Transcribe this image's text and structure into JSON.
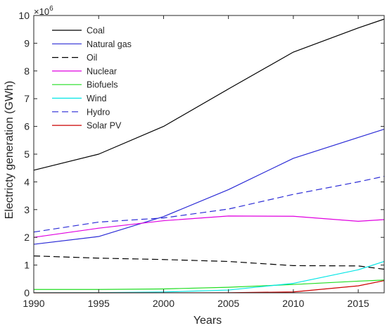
{
  "chart_data": {
    "type": "line",
    "title": "",
    "xlabel": "Years",
    "ylabel": "Electricty generation (GWh)",
    "y_exponent_label": "×10",
    "y_exponent_power": "6",
    "xlim": [
      1990,
      2017
    ],
    "ylim": [
      0,
      10
    ],
    "x_ticks": [
      1990,
      1995,
      2000,
      2005,
      2010,
      2015
    ],
    "x_tick_labels": [
      "1990",
      "1995",
      "2000",
      "2005",
      "2010",
      "2015"
    ],
    "y_ticks": [
      0,
      1,
      2,
      3,
      4,
      5,
      6,
      7,
      8,
      9,
      10
    ],
    "y_tick_labels": [
      "0",
      "1",
      "2",
      "3",
      "4",
      "5",
      "6",
      "7",
      "8",
      "9",
      "10"
    ],
    "grid": false,
    "legend_position": "top-left",
    "x": [
      1990,
      1995,
      2000,
      2005,
      2010,
      2015,
      2017
    ],
    "series": [
      {
        "name": "Coal",
        "color": "#000000",
        "dash": "solid",
        "values": [
          4.42,
          5.0,
          6.0,
          7.35,
          8.68,
          9.55,
          9.87
        ]
      },
      {
        "name": "Natural gas",
        "color": "#2b2bd6",
        "dash": "solid",
        "values": [
          1.75,
          2.03,
          2.75,
          3.72,
          4.85,
          5.6,
          5.9
        ]
      },
      {
        "name": "Oil",
        "color": "#000000",
        "dash": "dashed",
        "values": [
          1.33,
          1.25,
          1.2,
          1.13,
          0.98,
          0.97,
          0.85
        ]
      },
      {
        "name": "Nuclear",
        "color": "#e000e0",
        "dash": "solid",
        "values": [
          2.0,
          2.33,
          2.6,
          2.77,
          2.76,
          2.58,
          2.64
        ]
      },
      {
        "name": "Biofuels",
        "color": "#22dd22",
        "dash": "solid",
        "values": [
          0.12,
          0.12,
          0.14,
          0.2,
          0.3,
          0.42,
          0.46
        ]
      },
      {
        "name": "Wind",
        "color": "#00e5e5",
        "dash": "solid",
        "values": [
          0.004,
          0.006,
          0.03,
          0.1,
          0.34,
          0.83,
          1.13
        ]
      },
      {
        "name": "Hydro",
        "color": "#2b2bd6",
        "dash": "dashed",
        "values": [
          2.19,
          2.55,
          2.7,
          3.02,
          3.55,
          4.0,
          4.2
        ]
      },
      {
        "name": "Solar PV",
        "color": "#cc0000",
        "dash": "solid",
        "values": [
          0.0,
          0.0,
          0.001,
          0.004,
          0.032,
          0.25,
          0.44
        ]
      }
    ]
  }
}
